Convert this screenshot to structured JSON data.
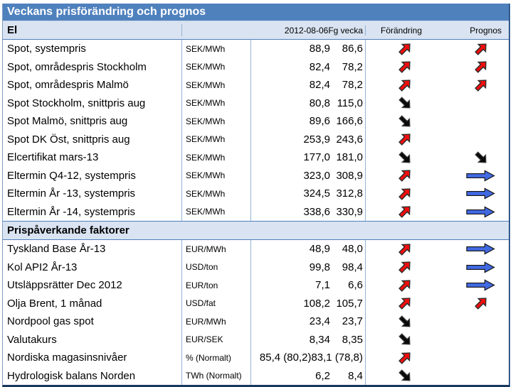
{
  "title": "Veckans prisförändring och prognos",
  "header": {
    "col_date": "2012-08-06",
    "col_prev_week": "Fg vecka",
    "col_change": "Förändring",
    "col_forecast": "Prognos"
  },
  "sections": [
    {
      "label": "El",
      "rows": [
        {
          "name": "Spot, systempris",
          "unit": "SEK/MWh",
          "value": "88,9",
          "prev": "86,6",
          "change": "up",
          "forecast": "up"
        },
        {
          "name": "Spot, områdespris Stockholm",
          "unit": "SEK/MWh",
          "value": "82,4",
          "prev": "78,2",
          "change": "up",
          "forecast": "up"
        },
        {
          "name": "Spot, områdespris Malmö",
          "unit": "SEK/MWh",
          "value": "82,4",
          "prev": "78,2",
          "change": "up",
          "forecast": "up"
        },
        {
          "name": "Spot Stockholm, snittpris aug",
          "unit": "SEK/MWh",
          "value": "80,8",
          "prev": "115,0",
          "change": "down",
          "forecast": "none"
        },
        {
          "name": "Spot Malmö, snittpris aug",
          "unit": "SEK/MWh",
          "value": "89,6",
          "prev": "166,6",
          "change": "down",
          "forecast": "none"
        },
        {
          "name": "Spot DK Öst, snittpris aug",
          "unit": "SEK/MWh",
          "value": "253,9",
          "prev": "243,6",
          "change": "up",
          "forecast": "none"
        },
        {
          "name": "Elcertifikat mars-13",
          "unit": "SEK/MWh",
          "value": "177,0",
          "prev": "181,0",
          "change": "down",
          "forecast": "down"
        },
        {
          "name": "Eltermin Q4-12, systempris",
          "unit": "SEK/MWh",
          "value": "323,0",
          "prev": "308,9",
          "change": "up",
          "forecast": "flat"
        },
        {
          "name": "Eltermin År -13, systempris",
          "unit": "SEK/MWh",
          "value": "324,5",
          "prev": "312,8",
          "change": "up",
          "forecast": "flat"
        },
        {
          "name": "Eltermin År -14, systempris",
          "unit": "SEK/MWh",
          "value": "338,6",
          "prev": "330,9",
          "change": "up",
          "forecast": "flat"
        }
      ]
    },
    {
      "label": "Prispåverkande faktorer",
      "rows": [
        {
          "name": "Tyskland Base År-13",
          "unit": "EUR/MWh",
          "value": "48,9",
          "prev": "48,0",
          "change": "up",
          "forecast": "flat"
        },
        {
          "name": "Kol API2 År-13",
          "unit": "USD/ton",
          "value": "99,8",
          "prev": "98,4",
          "change": "up",
          "forecast": "flat"
        },
        {
          "name": "Utsläppsrätter Dec 2012",
          "unit": "EUR/ton",
          "value": "7,1",
          "prev": "6,6",
          "change": "up",
          "forecast": "flat"
        },
        {
          "name": "Olja Brent, 1 månad",
          "unit": "USD/fat",
          "value": "108,2",
          "prev": "105,7",
          "change": "up",
          "forecast": "up"
        },
        {
          "name": "Nordpool gas spot",
          "unit": "EUR/MWh",
          "value": "23,4",
          "prev": "23,7",
          "change": "down",
          "forecast": "none"
        },
        {
          "name": "Valutakurs",
          "unit": "EUR/SEK",
          "value": "8,34",
          "prev": "8,35",
          "change": "down",
          "forecast": "none"
        },
        {
          "name": "Nordiska magasinsnivåer",
          "unit": "% (Normalt)",
          "value": "85,4 (80,2)",
          "prev": "83,1 (78,8)",
          "change": "up",
          "forecast": "none"
        },
        {
          "name": "Hydrologisk balans Norden",
          "unit": "TWh (Normalt)",
          "value": "6,2",
          "prev": "8,4",
          "change": "down",
          "forecast": "none"
        }
      ]
    }
  ],
  "arrow_legend": {
    "up": "red-up-right-arrow (rising)",
    "down": "black-down-right-arrow (falling)",
    "flat": "blue-right-arrow (unchanged)"
  },
  "colors": {
    "title_bar": "#4f81bd",
    "band": "#d9e3f1",
    "grid": "#95b3d7",
    "border_dark": "#17375e",
    "arrow_up_red": "#f10e0e",
    "arrow_down_black": "#0a0a0a",
    "arrow_flat_blue": "#4169e1"
  }
}
